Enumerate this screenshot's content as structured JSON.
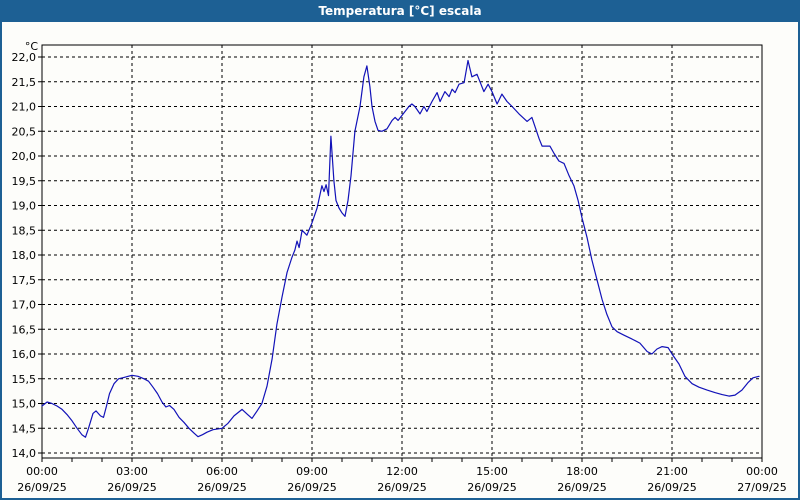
{
  "window": {
    "title": "Temperatura [°C] escala"
  },
  "colors": {
    "titlebar": "#1d6094",
    "window_border": "#1d6094",
    "background": "#fdfdfa",
    "title_text": "#ffffff",
    "grid": "#000000",
    "series_line": "#1212b8"
  },
  "chart_data": {
    "type": "line",
    "title": "Temperatura [°C] escala",
    "grid": "dashed",
    "legend": "none",
    "y_axis": {
      "unit_label": "°C",
      "min": 14.0,
      "max": 22.0,
      "tick_step": 0.5,
      "tick_labels": [
        "14,0",
        "14,5",
        "15,0",
        "15,5",
        "16,0",
        "16,5",
        "17,0",
        "17,5",
        "18,0",
        "18,5",
        "19,0",
        "19,5",
        "20,0",
        "20,5",
        "21,0",
        "21,5",
        "22,0"
      ]
    },
    "x_axis": {
      "min_hours": 0,
      "max_hours": 24,
      "minor_tick_hours": 1,
      "gridline_hours": 3,
      "ticks": [
        {
          "hour": 0,
          "time": "00:00",
          "date": "26/09/25"
        },
        {
          "hour": 3,
          "time": "03:00",
          "date": "26/09/25"
        },
        {
          "hour": 6,
          "time": "06:00",
          "date": "26/09/25"
        },
        {
          "hour": 9,
          "time": "09:00",
          "date": "26/09/25"
        },
        {
          "hour": 12,
          "time": "12:00",
          "date": "26/09/25"
        },
        {
          "hour": 15,
          "time": "15:00",
          "date": "26/09/25"
        },
        {
          "hour": 18,
          "time": "18:00",
          "date": "26/09/25"
        },
        {
          "hour": 21,
          "time": "21:00",
          "date": "26/09/25"
        },
        {
          "hour": 24,
          "time": "00:00",
          "date": "27/09/25"
        }
      ]
    },
    "series": [
      {
        "name": "Temperatura",
        "color": "#1212b8",
        "points": [
          [
            0.0,
            14.95
          ],
          [
            0.17,
            15.03
          ],
          [
            0.33,
            15.0
          ],
          [
            0.5,
            14.95
          ],
          [
            0.67,
            14.88
          ],
          [
            0.83,
            14.78
          ],
          [
            1.0,
            14.65
          ],
          [
            1.17,
            14.5
          ],
          [
            1.33,
            14.37
          ],
          [
            1.45,
            14.32
          ],
          [
            1.55,
            14.5
          ],
          [
            1.7,
            14.8
          ],
          [
            1.8,
            14.85
          ],
          [
            1.95,
            14.75
          ],
          [
            2.05,
            14.72
          ],
          [
            2.15,
            14.95
          ],
          [
            2.25,
            15.2
          ],
          [
            2.4,
            15.4
          ],
          [
            2.55,
            15.5
          ],
          [
            2.75,
            15.53
          ],
          [
            3.0,
            15.57
          ],
          [
            3.2,
            15.55
          ],
          [
            3.4,
            15.5
          ],
          [
            3.55,
            15.45
          ],
          [
            3.7,
            15.33
          ],
          [
            3.85,
            15.2
          ],
          [
            4.0,
            15.03
          ],
          [
            4.13,
            14.93
          ],
          [
            4.25,
            14.96
          ],
          [
            4.4,
            14.88
          ],
          [
            4.57,
            14.72
          ],
          [
            4.73,
            14.62
          ],
          [
            4.9,
            14.5
          ],
          [
            5.07,
            14.4
          ],
          [
            5.2,
            14.33
          ],
          [
            5.35,
            14.37
          ],
          [
            5.5,
            14.42
          ],
          [
            5.7,
            14.47
          ],
          [
            6.0,
            14.5
          ],
          [
            6.2,
            14.6
          ],
          [
            6.4,
            14.75
          ],
          [
            6.67,
            14.88
          ],
          [
            6.85,
            14.78
          ],
          [
            7.0,
            14.7
          ],
          [
            7.17,
            14.85
          ],
          [
            7.33,
            15.0
          ],
          [
            7.5,
            15.35
          ],
          [
            7.67,
            15.9
          ],
          [
            7.83,
            16.6
          ],
          [
            8.0,
            17.15
          ],
          [
            8.17,
            17.65
          ],
          [
            8.33,
            17.95
          ],
          [
            8.43,
            18.1
          ],
          [
            8.5,
            18.28
          ],
          [
            8.57,
            18.15
          ],
          [
            8.67,
            18.5
          ],
          [
            8.83,
            18.4
          ],
          [
            9.0,
            18.65
          ],
          [
            9.17,
            18.95
          ],
          [
            9.33,
            19.4
          ],
          [
            9.4,
            19.28
          ],
          [
            9.47,
            19.42
          ],
          [
            9.55,
            19.2
          ],
          [
            9.63,
            20.4
          ],
          [
            9.73,
            19.5
          ],
          [
            9.8,
            19.1
          ],
          [
            9.9,
            18.95
          ],
          [
            10.0,
            18.85
          ],
          [
            10.1,
            18.78
          ],
          [
            10.2,
            19.1
          ],
          [
            10.3,
            19.6
          ],
          [
            10.43,
            20.5
          ],
          [
            10.6,
            21.0
          ],
          [
            10.73,
            21.6
          ],
          [
            10.83,
            21.82
          ],
          [
            10.93,
            21.4
          ],
          [
            11.0,
            21.0
          ],
          [
            11.1,
            20.7
          ],
          [
            11.2,
            20.52
          ],
          [
            11.33,
            20.5
          ],
          [
            11.5,
            20.55
          ],
          [
            11.67,
            20.72
          ],
          [
            11.77,
            20.78
          ],
          [
            11.87,
            20.72
          ],
          [
            12.0,
            20.82
          ],
          [
            12.23,
            21.0
          ],
          [
            12.33,
            21.05
          ],
          [
            12.43,
            21.0
          ],
          [
            12.6,
            20.85
          ],
          [
            12.73,
            21.0
          ],
          [
            12.83,
            20.9
          ],
          [
            13.0,
            21.1
          ],
          [
            13.17,
            21.28
          ],
          [
            13.27,
            21.1
          ],
          [
            13.43,
            21.3
          ],
          [
            13.57,
            21.2
          ],
          [
            13.67,
            21.35
          ],
          [
            13.77,
            21.28
          ],
          [
            13.9,
            21.45
          ],
          [
            14.07,
            21.48
          ],
          [
            14.2,
            21.93
          ],
          [
            14.33,
            21.6
          ],
          [
            14.5,
            21.65
          ],
          [
            14.6,
            21.5
          ],
          [
            14.73,
            21.3
          ],
          [
            14.87,
            21.45
          ],
          [
            15.0,
            21.3
          ],
          [
            15.17,
            21.05
          ],
          [
            15.33,
            21.25
          ],
          [
            15.5,
            21.1
          ],
          [
            15.67,
            21.0
          ],
          [
            15.9,
            20.85
          ],
          [
            16.17,
            20.7
          ],
          [
            16.33,
            20.78
          ],
          [
            16.57,
            20.35
          ],
          [
            16.67,
            20.2
          ],
          [
            16.93,
            20.2
          ],
          [
            17.07,
            20.05
          ],
          [
            17.23,
            19.9
          ],
          [
            17.4,
            19.85
          ],
          [
            17.57,
            19.6
          ],
          [
            17.73,
            19.4
          ],
          [
            17.87,
            19.1
          ],
          [
            18.0,
            18.75
          ],
          [
            18.17,
            18.35
          ],
          [
            18.33,
            17.9
          ],
          [
            18.5,
            17.5
          ],
          [
            18.67,
            17.1
          ],
          [
            18.83,
            16.8
          ],
          [
            19.0,
            16.55
          ],
          [
            19.17,
            16.45
          ],
          [
            19.4,
            16.38
          ],
          [
            19.67,
            16.3
          ],
          [
            19.93,
            16.22
          ],
          [
            20.17,
            16.05
          ],
          [
            20.33,
            16.0
          ],
          [
            20.5,
            16.1
          ],
          [
            20.67,
            16.15
          ],
          [
            20.87,
            16.13
          ],
          [
            21.0,
            16.0
          ],
          [
            21.23,
            15.8
          ],
          [
            21.43,
            15.55
          ],
          [
            21.67,
            15.4
          ],
          [
            21.9,
            15.33
          ],
          [
            22.17,
            15.27
          ],
          [
            22.43,
            15.22
          ],
          [
            22.67,
            15.18
          ],
          [
            22.9,
            15.15
          ],
          [
            23.1,
            15.17
          ],
          [
            23.33,
            15.27
          ],
          [
            23.53,
            15.42
          ],
          [
            23.7,
            15.52
          ],
          [
            23.9,
            15.55
          ]
        ]
      }
    ]
  }
}
